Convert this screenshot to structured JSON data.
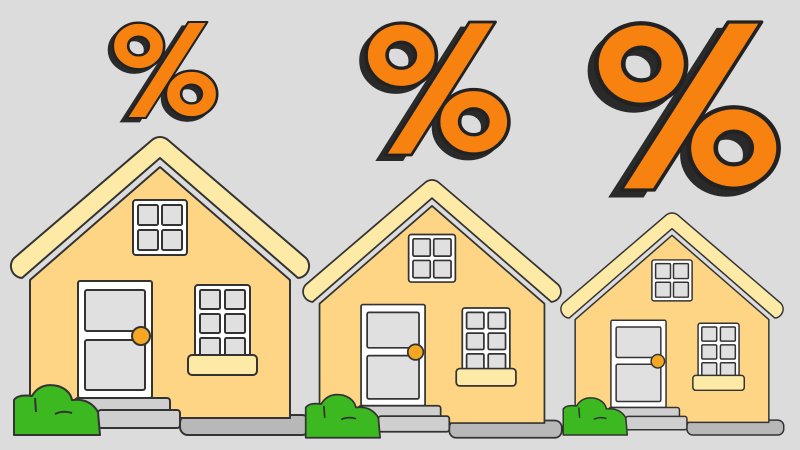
{
  "scene": {
    "subject": "three-houses-with-percent-signs",
    "houses": [
      {
        "id": "large",
        "percent_icon": "percent-sign-icon"
      },
      {
        "id": "medium",
        "percent_icon": "percent-sign-icon"
      },
      {
        "id": "small",
        "percent_icon": "percent-sign-icon"
      }
    ]
  },
  "colors": {
    "background": "#dcdcdc",
    "percent_orange": "#f7820f",
    "roof": "#fdeaa6",
    "wall": "#fdd585",
    "door": "#ffffff",
    "glass": "#e0e0e0",
    "knob": "#f5a623",
    "bush": "#3cb820",
    "steps": "#cfcfcf",
    "walkway": "#b8b8b8",
    "outline": "#333333"
  }
}
